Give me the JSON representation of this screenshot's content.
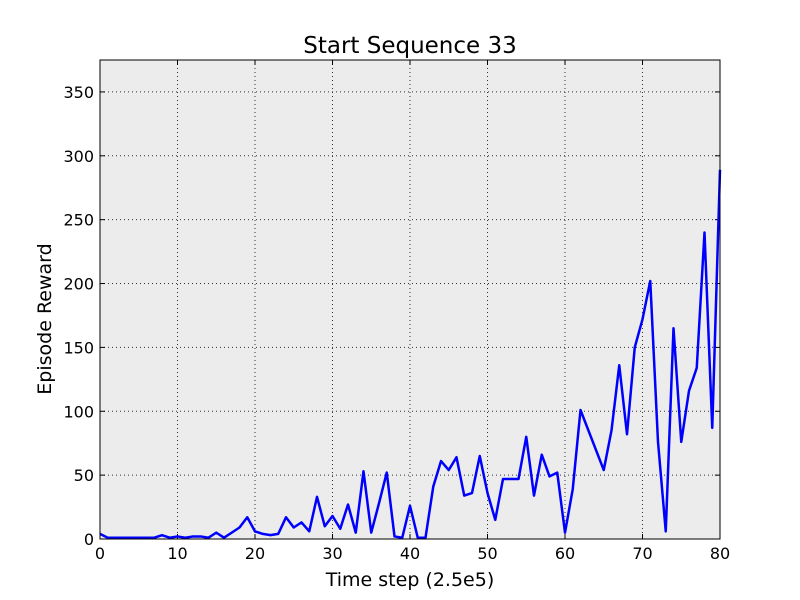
{
  "chart_data": {
    "type": "line",
    "title": "Start Sequence 33",
    "xlabel": "Time step (2.5e5)",
    "ylabel": "Episode Reward",
    "xlim": [
      0,
      80
    ],
    "ylim": [
      0,
      375
    ],
    "xticks": [
      0,
      10,
      20,
      30,
      40,
      50,
      60,
      70,
      80
    ],
    "yticks": [
      0,
      50,
      100,
      150,
      200,
      250,
      300,
      350
    ],
    "grid": true,
    "legend": "none",
    "colors": {
      "line": "#0000ff",
      "plot_bg": "#ececec",
      "grid": "#333333"
    },
    "series": [
      {
        "x": [
          0,
          1,
          2,
          3,
          4,
          5,
          6,
          7,
          8,
          9,
          10,
          11,
          12,
          13,
          14,
          15,
          16,
          17,
          18,
          19,
          20,
          21,
          22,
          23,
          24,
          25,
          26,
          27,
          28,
          29,
          30,
          31,
          32,
          33,
          34,
          35,
          36,
          37,
          38,
          39,
          40,
          41,
          42,
          43,
          44,
          45,
          46,
          47,
          48,
          49,
          50,
          51,
          52,
          53,
          54,
          55,
          56,
          57,
          58,
          59,
          60,
          61,
          62,
          65,
          66,
          67,
          68,
          69,
          70,
          71,
          72,
          73,
          74,
          75,
          76,
          77,
          78,
          79,
          80
        ],
        "values": [
          4,
          1,
          1,
          1,
          1,
          1,
          1,
          1,
          3,
          1,
          2,
          1,
          2,
          2,
          1,
          5,
          1,
          5,
          9,
          17,
          6,
          4,
          3,
          4,
          17,
          9,
          13,
          6,
          33,
          10,
          18,
          8,
          27,
          5,
          53,
          5,
          28,
          52,
          2,
          1,
          26,
          1,
          1,
          41,
          61,
          54,
          64,
          34,
          36,
          65,
          36,
          15,
          47,
          47,
          47,
          80,
          34,
          66,
          49,
          52,
          5,
          39,
          101,
          54,
          85,
          136,
          82,
          150,
          172,
          202,
          76,
          6,
          165,
          76,
          116,
          134,
          240,
          87,
          289
        ]
      }
    ]
  }
}
